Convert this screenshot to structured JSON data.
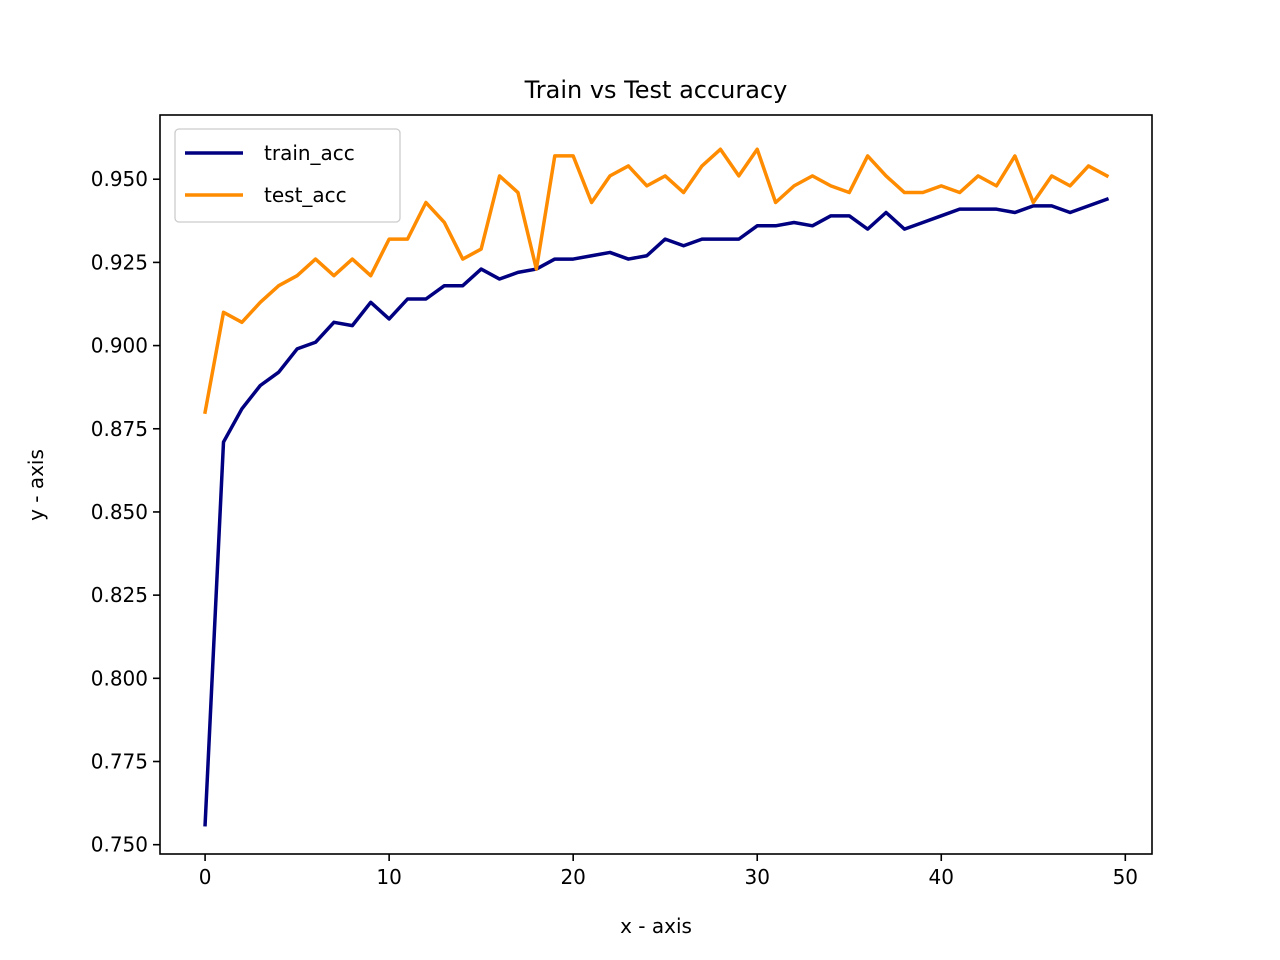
{
  "chart_data": {
    "type": "line",
    "title": "Train vs Test accuracy",
    "xlabel": "x - axis",
    "ylabel": "y - axis",
    "xlim": [
      -2.45,
      51.45
    ],
    "ylim": [
      0.7472,
      0.9693
    ],
    "xticks": [
      0,
      10,
      20,
      30,
      40,
      50
    ],
    "yticks": [
      0.75,
      0.775,
      0.8,
      0.825,
      0.85,
      0.875,
      0.9,
      0.925,
      0.95
    ],
    "grid": false,
    "legend_position": "top-left",
    "x": [
      0,
      1,
      2,
      3,
      4,
      5,
      6,
      7,
      8,
      9,
      10,
      11,
      12,
      13,
      14,
      15,
      16,
      17,
      18,
      19,
      20,
      21,
      22,
      23,
      24,
      25,
      26,
      27,
      28,
      29,
      30,
      31,
      32,
      33,
      34,
      35,
      36,
      37,
      38,
      39,
      40,
      41,
      42,
      43,
      44,
      45,
      46,
      47,
      48,
      49
    ],
    "series": [
      {
        "name": "train_acc",
        "color": "#000080",
        "values": [
          0.756,
          0.871,
          0.881,
          0.888,
          0.892,
          0.899,
          0.901,
          0.907,
          0.906,
          0.913,
          0.908,
          0.914,
          0.914,
          0.918,
          0.918,
          0.923,
          0.92,
          0.922,
          0.923,
          0.926,
          0.926,
          0.927,
          0.928,
          0.926,
          0.927,
          0.932,
          0.93,
          0.932,
          0.932,
          0.932,
          0.936,
          0.936,
          0.937,
          0.936,
          0.939,
          0.939,
          0.935,
          0.94,
          0.935,
          0.937,
          0.939,
          0.941,
          0.941,
          0.941,
          0.94,
          0.942,
          0.942,
          0.94,
          0.942,
          0.944
        ]
      },
      {
        "name": "test_acc",
        "color": "#ff8c00",
        "values": [
          0.88,
          0.91,
          0.907,
          0.913,
          0.918,
          0.921,
          0.926,
          0.921,
          0.926,
          0.921,
          0.932,
          0.932,
          0.943,
          0.937,
          0.926,
          0.929,
          0.951,
          0.946,
          0.923,
          0.957,
          0.957,
          0.943,
          0.951,
          0.954,
          0.948,
          0.951,
          0.946,
          0.954,
          0.959,
          0.951,
          0.959,
          0.943,
          0.948,
          0.951,
          0.948,
          0.946,
          0.957,
          0.951,
          0.946,
          0.946,
          0.948,
          0.946,
          0.951,
          0.948,
          0.957,
          0.943,
          0.951,
          0.948,
          0.954,
          0.951
        ]
      }
    ]
  }
}
